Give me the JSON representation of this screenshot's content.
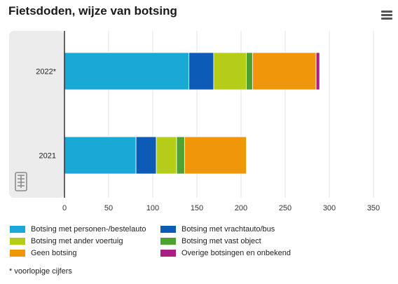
{
  "title": "Fietsdoden, wijze van botsing",
  "menu_icon": "hamburger-menu-icon",
  "logo_icon": "cbs-logo-icon",
  "footnote": "* voorlopige cijfers",
  "chart_data": {
    "type": "bar",
    "orientation": "horizontal",
    "stacked": true,
    "categories": [
      "2022*",
      "2021"
    ],
    "series": [
      {
        "name": "Botsing met personen-/bestelauto",
        "color": "#1aa8d6",
        "values": [
          141,
          81
        ]
      },
      {
        "name": "Botsing met vrachtauto/bus",
        "color": "#0c5bb5",
        "values": [
          28,
          23
        ]
      },
      {
        "name": "Botsing met ander voertuig",
        "color": "#b5cc18",
        "values": [
          37,
          23
        ]
      },
      {
        "name": "Botsing met vast object",
        "color": "#4da330",
        "values": [
          7,
          9
        ]
      },
      {
        "name": "Geen botsing",
        "color": "#f0960a",
        "values": [
          72,
          70
        ]
      },
      {
        "name": "Overige botsingen en onbekend",
        "color": "#ad1e82",
        "values": [
          4,
          0
        ]
      }
    ],
    "xlim": [
      0,
      350
    ],
    "xticks": [
      0,
      50,
      100,
      150,
      200,
      250,
      300,
      350
    ],
    "grid": true,
    "legend_position": "bottom"
  }
}
